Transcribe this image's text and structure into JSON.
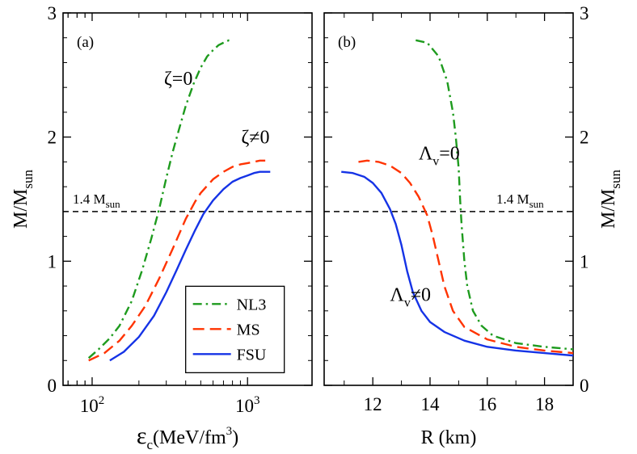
{
  "chart_data": [
    {
      "type": "line",
      "panel_label": "(a)",
      "xscale": "log",
      "xlabel": {
        "main": "ε",
        "sub": "c",
        "rest": "(MeV/fm",
        "sup": "3",
        "close": ")"
      },
      "ylabel": {
        "main": "M/M",
        "sub": "sun"
      },
      "xlim": [
        65,
        2600
      ],
      "ylim": [
        0,
        3
      ],
      "xticks": [
        {
          "value": 100,
          "base": "10",
          "exp": "2"
        },
        {
          "value": 1000,
          "base": "10",
          "exp": "3"
        }
      ],
      "yticks": [
        "0",
        "1",
        "2",
        "3"
      ],
      "reference_line": {
        "y": 1.4,
        "label": "1.4 M",
        "label_sub": "sun"
      },
      "annotations": [
        {
          "text": "ζ=0",
          "x": 290,
          "y": 2.42
        },
        {
          "text": "ζ≠0",
          "x": 910,
          "y": 1.95
        }
      ],
      "legend": {
        "location": "lower-right",
        "entries": [
          {
            "label": "NL3",
            "color": "#1e9b1e",
            "style": "dashdot"
          },
          {
            "label": "MS",
            "color": "#ff3300",
            "style": "dashed"
          },
          {
            "label": "FSU",
            "color": "#1533e6",
            "style": "solid"
          }
        ]
      },
      "series": [
        {
          "name": "NL3",
          "color": "#1e9b1e",
          "style": "dashdot",
          "x": [
            95,
            110,
            130,
            150,
            180,
            210,
            240,
            270,
            300,
            330,
            360,
            400,
            450,
            500,
            550,
            600,
            650,
            700,
            760,
            800
          ],
          "y": [
            0.22,
            0.29,
            0.38,
            0.48,
            0.68,
            0.93,
            1.18,
            1.42,
            1.67,
            1.88,
            2.05,
            2.25,
            2.43,
            2.56,
            2.65,
            2.7,
            2.74,
            2.76,
            2.78,
            2.78
          ]
        },
        {
          "name": "MS",
          "color": "#ff3300",
          "style": "dashed",
          "x": [
            95,
            120,
            150,
            180,
            220,
            270,
            330,
            400,
            460,
            500,
            600,
            700,
            800,
            900,
            1000,
            1100,
            1200,
            1300
          ],
          "y": [
            0.2,
            0.26,
            0.36,
            0.48,
            0.64,
            0.86,
            1.1,
            1.34,
            1.48,
            1.55,
            1.66,
            1.72,
            1.76,
            1.78,
            1.79,
            1.8,
            1.81,
            1.81
          ]
        },
        {
          "name": "FSU",
          "color": "#1533e6",
          "style": "solid",
          "x": [
            130,
            160,
            200,
            250,
            300,
            350,
            400,
            460,
            520,
            600,
            700,
            800,
            900,
            1000,
            1100,
            1200,
            1300,
            1400
          ],
          "y": [
            0.2,
            0.27,
            0.39,
            0.56,
            0.75,
            0.93,
            1.09,
            1.25,
            1.38,
            1.49,
            1.58,
            1.64,
            1.67,
            1.69,
            1.71,
            1.72,
            1.72,
            1.72
          ]
        }
      ]
    },
    {
      "type": "line",
      "panel_label": "(b)",
      "xscale": "linear",
      "xlabel": {
        "main": "R (km)"
      },
      "ylabel": {
        "main": "M/M",
        "sub": "sun"
      },
      "xlim": [
        10.3,
        19
      ],
      "ylim": [
        0,
        3
      ],
      "xticks": [
        "12",
        "14",
        "16",
        "18"
      ],
      "yticks": [
        "0",
        "1",
        "2",
        "3"
      ],
      "reference_line": {
        "y": 1.4,
        "label": "1.4 M",
        "label_sub": "sun"
      },
      "annotations": [
        {
          "text": "Λ",
          "sub": "v",
          "rest": "=0",
          "x": 13.6,
          "y": 1.82
        },
        {
          "text": "Λ",
          "sub": "v",
          "rest": "≠0",
          "x": 12.6,
          "y": 0.68
        }
      ],
      "series": [
        {
          "name": "NL3",
          "color": "#1e9b1e",
          "style": "dashdot",
          "x": [
            13.5,
            13.9,
            14.3,
            14.6,
            14.8,
            14.9,
            15.0,
            15.05,
            15.1,
            15.2,
            15.3,
            15.5,
            15.8,
            16.2,
            17.0,
            18.0,
            19.0
          ],
          "y": [
            2.78,
            2.76,
            2.65,
            2.45,
            2.2,
            2.0,
            1.75,
            1.5,
            1.3,
            1.0,
            0.8,
            0.6,
            0.48,
            0.4,
            0.34,
            0.31,
            0.29
          ]
        },
        {
          "name": "MS",
          "color": "#ff3300",
          "style": "dashed",
          "x": [
            11.5,
            11.8,
            12.2,
            12.6,
            13.0,
            13.3,
            13.6,
            13.9,
            14.1,
            14.3,
            14.5,
            14.8,
            15.2,
            16.0,
            17.0,
            18.0,
            19.0
          ],
          "y": [
            1.8,
            1.81,
            1.8,
            1.77,
            1.71,
            1.63,
            1.52,
            1.37,
            1.2,
            1.0,
            0.8,
            0.6,
            0.47,
            0.37,
            0.31,
            0.28,
            0.26
          ]
        },
        {
          "name": "FSU",
          "color": "#1533e6",
          "style": "solid",
          "x": [
            10.9,
            11.3,
            11.7,
            12.0,
            12.3,
            12.6,
            12.8,
            13.0,
            13.2,
            13.4,
            13.7,
            14.0,
            14.5,
            15.2,
            16.0,
            17.0,
            18.0,
            19.0
          ],
          "y": [
            1.72,
            1.71,
            1.68,
            1.63,
            1.55,
            1.42,
            1.3,
            1.13,
            0.92,
            0.75,
            0.6,
            0.51,
            0.43,
            0.36,
            0.31,
            0.28,
            0.26,
            0.24
          ]
        }
      ]
    }
  ]
}
